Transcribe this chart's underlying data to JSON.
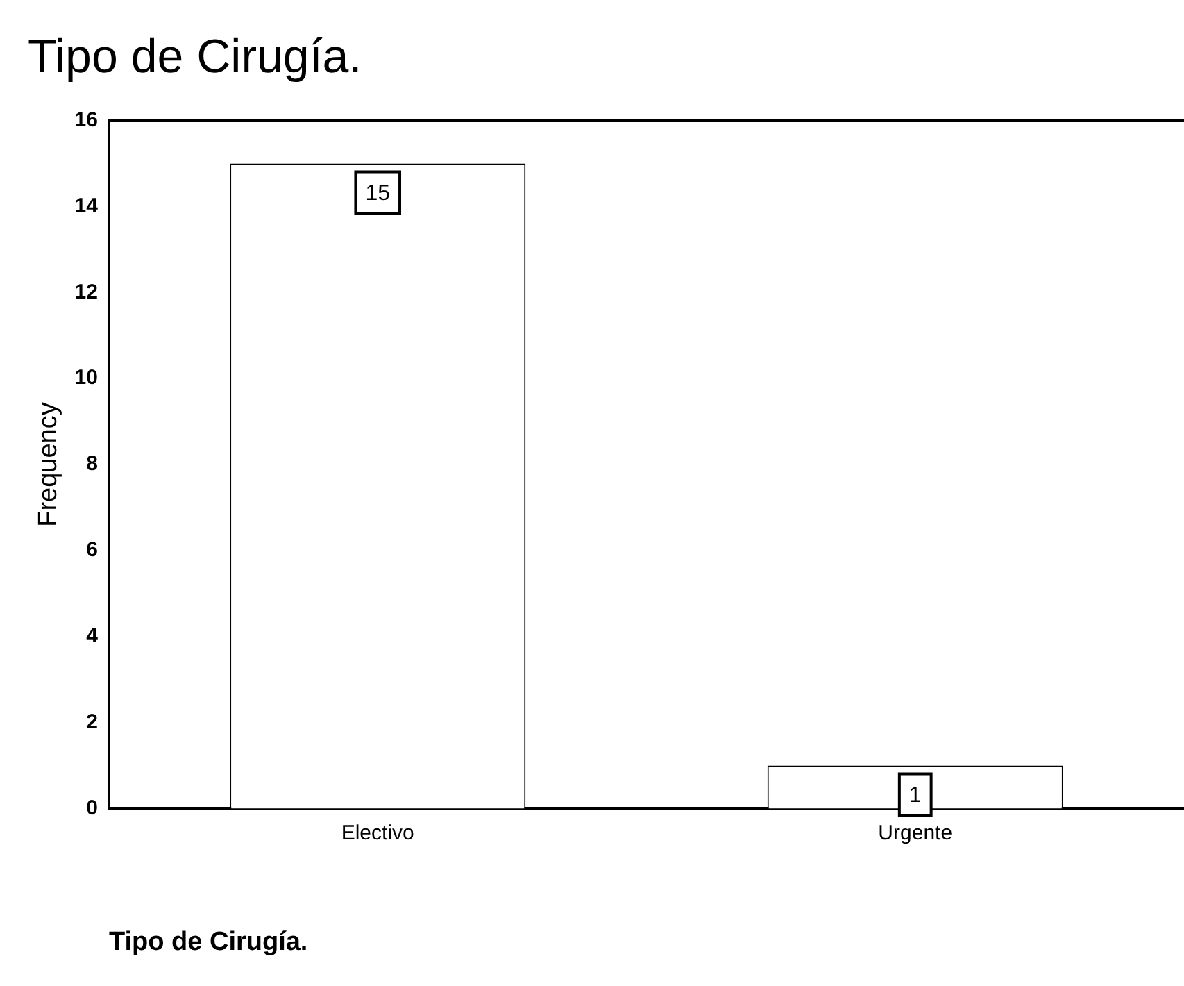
{
  "chart_data": {
    "type": "bar",
    "title": "Tipo de Cirugía.",
    "xlabel": "Tipo de Cirugía.",
    "ylabel": "Frequency",
    "categories": [
      "Electivo",
      "Urgente"
    ],
    "values": [
      15,
      1
    ],
    "color": "#ffffff",
    "ylim": [
      0,
      16
    ],
    "yticks": [
      0,
      2,
      4,
      6,
      8,
      10,
      12,
      14,
      16
    ],
    "grid": false,
    "legend": false,
    "data_labels": true
  }
}
